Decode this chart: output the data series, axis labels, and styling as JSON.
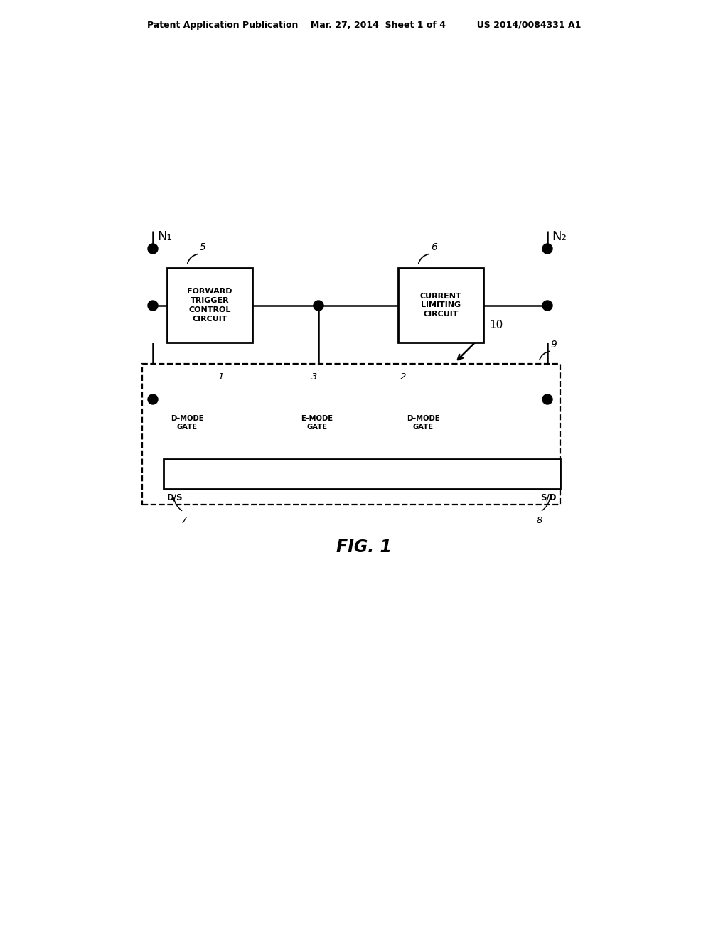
{
  "bg_color": "#ffffff",
  "line_color": "#000000",
  "header_text": "Patent Application Publication    Mar. 27, 2014  Sheet 1 of 4          US 2014/0084331 A1",
  "fig_label": "FIG. 1",
  "ref_10": "10",
  "ref_5": "5",
  "ref_6": "6",
  "ref_9": "9",
  "ref_1": "1",
  "ref_2": "2",
  "ref_3": "3",
  "ref_7": "7",
  "ref_8": "8",
  "N1_label": "N₁",
  "N2_label": "N₂",
  "box1_text": "FORWARD\nTRIGGER\nCONTROL\nCIRCUIT",
  "box2_text": "CURRENT\nLIMITING\nCIRCUIT",
  "dmode1_text": "D–MODE\nGATE",
  "emode_text": "E–MODE\nGATE",
  "dmode2_text": "D–MODE\nGATE",
  "ds_label": "D/S",
  "sd_label": "S/D"
}
